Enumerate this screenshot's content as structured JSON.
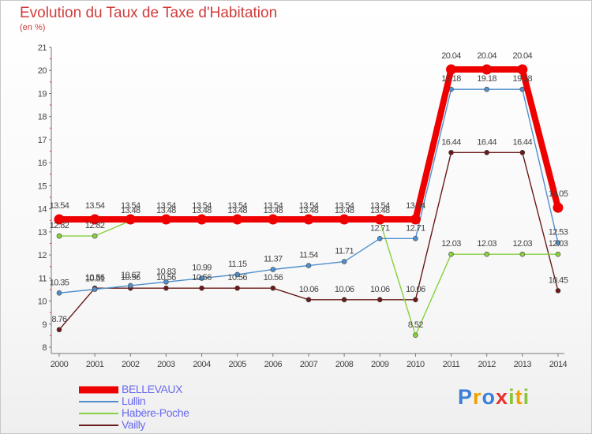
{
  "title": "Evolution du Taux de Taxe d'Habitation",
  "unit": "(en %)",
  "brand": {
    "letters": [
      {
        "ch": "P",
        "color": "#3b7fd6"
      },
      {
        "ch": "r",
        "color": "#f0a000"
      },
      {
        "ch": "o",
        "color": "#3b7fd6"
      },
      {
        "ch": "x",
        "color": "#e83030"
      },
      {
        "ch": "i",
        "color": "#8ac43c"
      },
      {
        "ch": "t",
        "color": "#f0a000"
      },
      {
        "ch": "i",
        "color": "#8ac43c"
      }
    ]
  },
  "chart_data": {
    "type": "line",
    "x": [
      "2000",
      "2001",
      "2002",
      "2003",
      "2004",
      "2005",
      "2006",
      "2007",
      "2008",
      "2009",
      "2010",
      "2011",
      "2012",
      "2013",
      "2014"
    ],
    "ylim": [
      8,
      21
    ],
    "yticks": [
      "8",
      "9",
      "10",
      "11",
      "12",
      "13",
      "14",
      "15",
      "16",
      "17",
      "18",
      "19",
      "20",
      "21"
    ],
    "grid": false,
    "legend_position": "bottom-left",
    "series": [
      {
        "name": "BELLEVAUX",
        "color": "#ee0000",
        "width": "thick",
        "values": [
          13.54,
          13.54,
          13.54,
          13.54,
          13.54,
          13.54,
          13.54,
          13.54,
          13.54,
          13.54,
          13.54,
          20.04,
          20.04,
          20.04,
          14.05
        ],
        "labels": [
          "13.54",
          "13.54",
          "13.54",
          "13.54",
          "13.54",
          "13.54",
          "13.54",
          "13.54",
          "13.54",
          "13.54",
          "13.54",
          "20.04",
          "20.04",
          "20.04",
          "14.05"
        ]
      },
      {
        "name": "Lullin",
        "color": "#4f8fcc",
        "width": "thin",
        "values": [
          10.35,
          10.51,
          10.67,
          10.83,
          10.99,
          11.15,
          11.37,
          11.54,
          11.71,
          12.71,
          12.71,
          19.18,
          19.18,
          19.18,
          12.53
        ],
        "labels": [
          "10.35",
          "10.51",
          "10.67",
          "10.83",
          "10.99",
          "11.15",
          "11.37",
          "11.54",
          "11.71",
          "12.71",
          "12.71",
          "19.18",
          "19.18",
          "19.18",
          "12.53"
        ]
      },
      {
        "name": "Habère-Poche",
        "color": "#88d040",
        "width": "thin",
        "values": [
          12.82,
          12.82,
          13.48,
          13.48,
          13.48,
          13.48,
          13.48,
          13.48,
          13.48,
          13.48,
          8.52,
          12.03,
          12.03,
          12.03,
          12.03
        ],
        "labels": [
          "12.82",
          "12.82",
          "13.48",
          "13.48",
          "13.48",
          "13.48",
          "13.48",
          "13.48",
          "13.48",
          "13.48",
          "8.52",
          "12.03",
          "12.03",
          "12.03",
          "12.03"
        ]
      },
      {
        "name": "Vailly",
        "color": "#6a1a1a",
        "width": "thin",
        "values": [
          8.76,
          10.56,
          10.56,
          10.56,
          10.56,
          10.56,
          10.56,
          10.06,
          10.06,
          10.06,
          10.06,
          16.44,
          16.44,
          16.44,
          10.45
        ],
        "labels": [
          "8.76",
          "10.56",
          "10.56",
          "10.56",
          "10.56",
          "10.56",
          "10.56",
          "10.06",
          "10.06",
          "10.06",
          "10.06",
          "16.44",
          "16.44",
          "16.44",
          "10.45"
        ]
      }
    ]
  }
}
